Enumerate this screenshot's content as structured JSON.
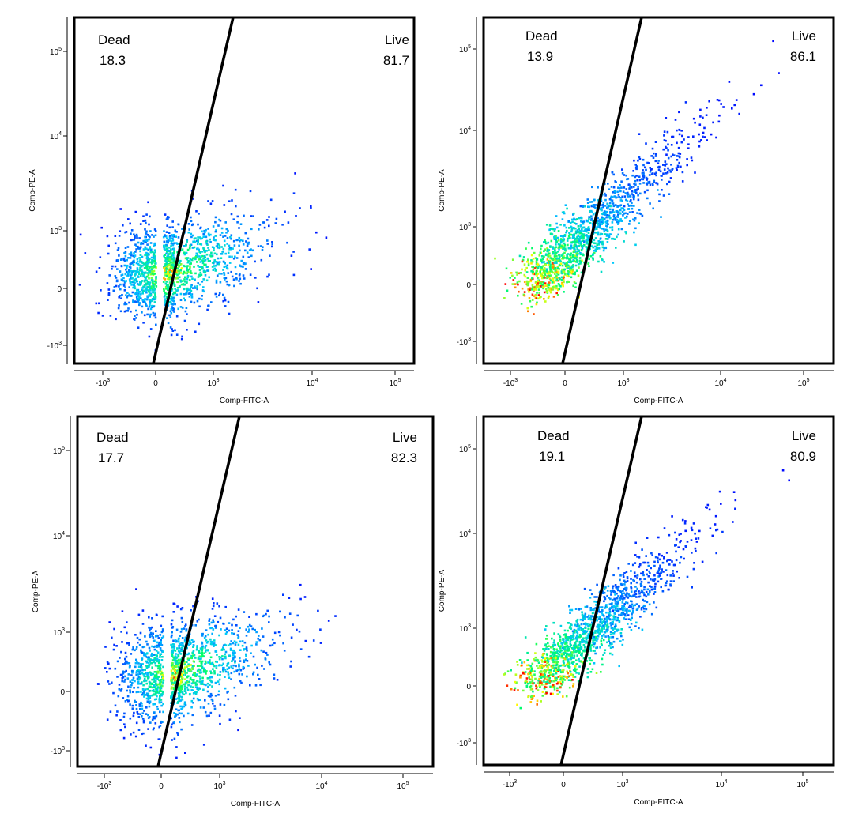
{
  "chart_data": [
    {
      "type": "scatter",
      "plot_style": "flow cytometry density dot plot (pseudocolor)",
      "xlabel": "Comp-FITC-A",
      "ylabel": "Comp-PE-A",
      "x_scale": "biexponential",
      "y_scale": "biexponential",
      "x_ticks": [
        "-10^3",
        "0",
        "10^3",
        "10^4",
        "10^5"
      ],
      "y_ticks": [
        "10^5",
        "10^4",
        "10^3",
        "0",
        "-10^3"
      ],
      "gates": [
        {
          "name": "Dead",
          "percent": "18.3"
        },
        {
          "name": "Live",
          "percent": "81.7"
        }
      ],
      "population": {
        "shape": "broad",
        "center": [
          180,
          120
        ]
      },
      "color_scale": [
        "#0000ff",
        "#00c8ff",
        "#00ff66",
        "#ffff00",
        "#ff0000"
      ]
    },
    {
      "type": "scatter",
      "plot_style": "flow cytometry density dot plot (pseudocolor)",
      "xlabel": "Comp-FITC-A",
      "ylabel": "Comp-PE-A",
      "x_scale": "biexponential",
      "y_scale": "biexponential",
      "x_ticks": [
        "-10^3",
        "0",
        "10^3",
        "10^4",
        "10^5"
      ],
      "y_ticks": [
        "10^5",
        "10^4",
        "10^3",
        "0",
        "-10^3"
      ],
      "gates": [
        {
          "name": "Dead",
          "percent": "13.9"
        },
        {
          "name": "Live",
          "percent": "86.1"
        }
      ],
      "population": {
        "shape": "diagonal",
        "center": [
          200,
          150
        ]
      },
      "color_scale": [
        "#0000ff",
        "#00c8ff",
        "#00ff66",
        "#ffff00",
        "#ff0000"
      ]
    },
    {
      "type": "scatter",
      "plot_style": "flow cytometry density dot plot (pseudocolor)",
      "xlabel": "Comp-FITC-A",
      "ylabel": "Comp-PE-A",
      "x_scale": "biexponential",
      "y_scale": "biexponential",
      "x_ticks": [
        "-10^3",
        "0",
        "10^3",
        "10^4",
        "10^5"
      ],
      "y_ticks": [
        "10^5",
        "10^4",
        "10^3",
        "0",
        "-10^3"
      ],
      "gates": [
        {
          "name": "Dead",
          "percent": "17.7"
        },
        {
          "name": "Live",
          "percent": "82.3"
        }
      ],
      "population": {
        "shape": "broad",
        "center": [
          200,
          120
        ]
      },
      "color_scale": [
        "#0000ff",
        "#00c8ff",
        "#00ff66",
        "#ffff00",
        "#ff0000"
      ]
    },
    {
      "type": "scatter",
      "plot_style": "flow cytometry density dot plot (pseudocolor)",
      "xlabel": "Comp-FITC-A",
      "ylabel": "Comp-PE-A",
      "x_scale": "biexponential",
      "y_scale": "biexponential",
      "x_ticks": [
        "-10^3",
        "0",
        "10^3",
        "10^4",
        "10^5"
      ],
      "y_ticks": [
        "10^5",
        "10^4",
        "10^3",
        "0",
        "-10^3"
      ],
      "gates": [
        {
          "name": "Dead",
          "percent": "19.1"
        },
        {
          "name": "Live",
          "percent": "80.9"
        }
      ],
      "population": {
        "shape": "diagonal",
        "center": [
          250,
          200
        ]
      },
      "color_scale": [
        "#0000ff",
        "#00c8ff",
        "#00ff66",
        "#ffff00",
        "#ff0000"
      ]
    }
  ]
}
